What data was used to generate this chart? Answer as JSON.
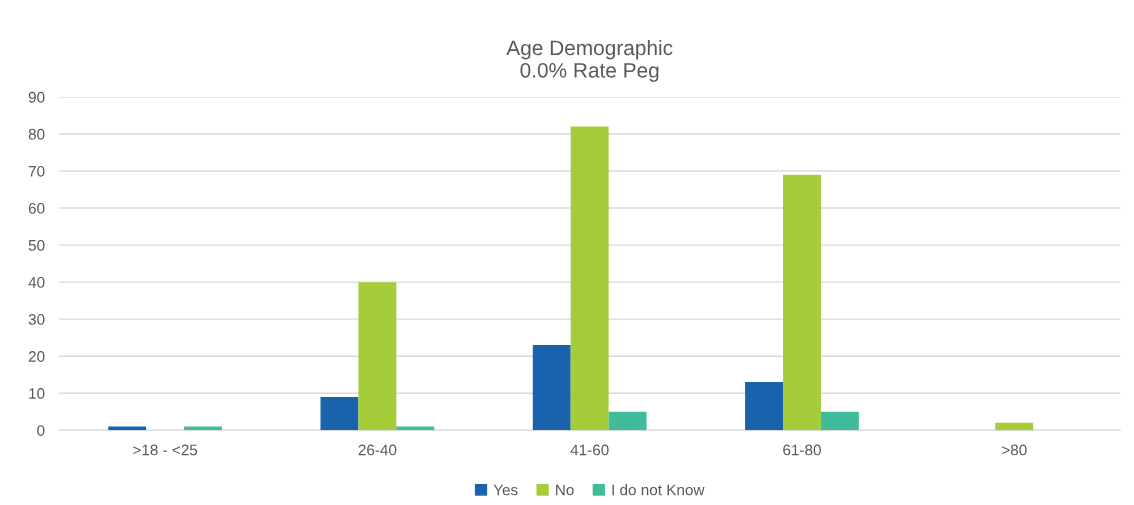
{
  "chart_data": {
    "type": "bar",
    "title": "Age Demographic\n0.0% Rate Peg",
    "categories": [
      ">18 - <25",
      "26-40",
      "41-60",
      "61-80",
      ">80"
    ],
    "series": [
      {
        "name": "Yes",
        "color": "#1a63ac",
        "values": [
          1,
          9,
          23,
          13,
          0
        ]
      },
      {
        "name": "No",
        "color": "#a5cd39",
        "values": [
          0,
          40,
          82,
          69,
          2
        ]
      },
      {
        "name": "I do not Know",
        "color": "#40bc9c",
        "values": [
          1,
          1,
          5,
          5,
          0
        ]
      }
    ],
    "ylim": [
      0,
      90
    ],
    "yticks": [
      0,
      10,
      20,
      30,
      40,
      50,
      60,
      70,
      80,
      90
    ],
    "grid": "y",
    "legend": "bottom"
  }
}
